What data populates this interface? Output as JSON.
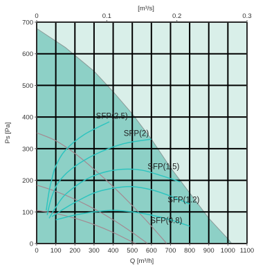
{
  "chart_data": {
    "type": "line",
    "title": "",
    "xlabel": "Q [m³/h]",
    "ylabel": "Ps [Pa]",
    "x2label": "[m³/s]",
    "xlim": [
      0,
      1100
    ],
    "ylim": [
      0,
      700
    ],
    "x2lim": [
      0,
      0.3
    ],
    "x_ticks": [
      0,
      100,
      200,
      300,
      400,
      500,
      600,
      700,
      800,
      900,
      1000,
      1100
    ],
    "x_tick_labels": [
      "0",
      "100",
      "200",
      "300",
      "400",
      "500",
      "600",
      "700",
      "800",
      "900",
      "1000",
      "1100"
    ],
    "y_ticks": [
      0,
      100,
      200,
      300,
      400,
      500,
      600,
      700
    ],
    "y_tick_labels": [
      "0",
      "100",
      "200",
      "300",
      "400",
      "500",
      "600",
      "700"
    ],
    "x2_ticks": [
      0,
      0.1,
      0.2,
      0.3
    ],
    "x2_tick_labels": [
      "0",
      "0.1",
      "0.2",
      "0.3"
    ],
    "grid": true,
    "colors": {
      "background": "#d9efe9",
      "fill": "#8dd0c6",
      "grid": "#000000",
      "boundary": "#8a9a98",
      "sfp_curve": "#2ec4bf",
      "system_curve": "#a48890"
    },
    "operating_envelope": [
      [
        0,
        680
      ],
      [
        150,
        620
      ],
      [
        300,
        545
      ],
      [
        400,
        480
      ],
      [
        500,
        410
      ],
      [
        600,
        330
      ],
      [
        700,
        240
      ],
      [
        800,
        160
      ],
      [
        900,
        80
      ],
      [
        1000,
        15
      ],
      [
        1020,
        0
      ],
      [
        0,
        0
      ]
    ],
    "sfp_curves": [
      {
        "label": "SFP(2.5)",
        "points": [
          [
            50,
            105
          ],
          [
            65,
            165
          ],
          [
            80,
            205
          ],
          [
            100,
            245
          ],
          [
            150,
            295
          ],
          [
            250,
            345
          ],
          [
            380,
            385
          ]
        ]
      },
      {
        "label": "SFP(2)",
        "points": [
          [
            55,
            90
          ],
          [
            75,
            140
          ],
          [
            110,
            190
          ],
          [
            180,
            235
          ],
          [
            300,
            280
          ],
          [
            450,
            315
          ],
          [
            600,
            330
          ]
        ]
      },
      {
        "label": "SFP(1.5)",
        "points": [
          [
            65,
            80
          ],
          [
            100,
            115
          ],
          [
            150,
            155
          ],
          [
            250,
            200
          ],
          [
            350,
            225
          ],
          [
            450,
            235
          ],
          [
            550,
            232
          ],
          [
            650,
            215
          ],
          [
            750,
            195
          ]
        ]
      },
      {
        "label": "SFP(1.2)",
        "points": [
          [
            80,
            85
          ],
          [
            130,
            105
          ],
          [
            200,
            130
          ],
          [
            300,
            160
          ],
          [
            400,
            175
          ],
          [
            500,
            180
          ],
          [
            600,
            170
          ],
          [
            700,
            150
          ],
          [
            800,
            125
          ]
        ]
      },
      {
        "label": "SFP(0.8)",
        "points": [
          [
            100,
            75
          ],
          [
            200,
            90
          ],
          [
            300,
            100
          ],
          [
            400,
            105
          ],
          [
            500,
            100
          ],
          [
            600,
            90
          ],
          [
            700,
            75
          ],
          [
            800,
            55
          ]
        ]
      }
    ],
    "system_curves": [
      {
        "points": [
          [
            0,
            350
          ],
          [
            100,
            325
          ],
          [
            200,
            285
          ],
          [
            300,
            235
          ],
          [
            400,
            180
          ],
          [
            500,
            120
          ],
          [
            600,
            55
          ],
          [
            680,
            0
          ]
        ]
      },
      {
        "points": [
          [
            0,
            185
          ],
          [
            100,
            165
          ],
          [
            200,
            140
          ],
          [
            300,
            110
          ],
          [
            400,
            75
          ],
          [
            500,
            35
          ],
          [
            580,
            0
          ]
        ]
      },
      {
        "points": [
          [
            0,
            105
          ],
          [
            100,
            95
          ],
          [
            200,
            80
          ],
          [
            300,
            60
          ],
          [
            400,
            35
          ],
          [
            500,
            5
          ],
          [
            520,
            0
          ]
        ]
      }
    ],
    "annotations": [
      {
        "text": "SFP(2.5)",
        "x": 310,
        "y": 395
      },
      {
        "text": "SFP(2)",
        "x": 455,
        "y": 340
      },
      {
        "text": "SFP(1.5)",
        "x": 580,
        "y": 235
      },
      {
        "text": "SFP(1.2)",
        "x": 685,
        "y": 130
      },
      {
        "text": "SFP(0.8)",
        "x": 595,
        "y": 65
      }
    ]
  }
}
